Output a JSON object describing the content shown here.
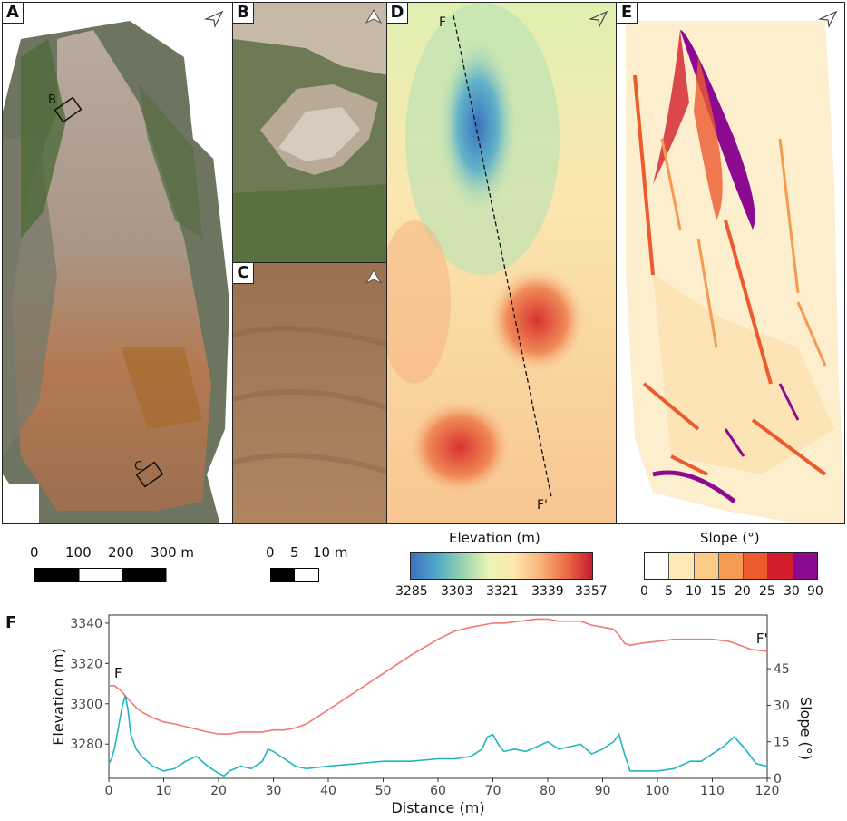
{
  "panels": {
    "A": {
      "label": "A",
      "box_b": "B",
      "box_c": "C"
    },
    "B": {
      "label": "B"
    },
    "C": {
      "label": "C"
    },
    "D": {
      "label": "D",
      "profile_start": "F",
      "profile_end": "F'"
    },
    "E": {
      "label": "E"
    },
    "F": {
      "label": "F"
    }
  },
  "scalebars": {
    "large": {
      "ticks": [
        "0",
        "100",
        "200",
        "300 m"
      ]
    },
    "small": {
      "ticks": [
        "0",
        "5",
        "10 m"
      ]
    }
  },
  "colorbars": {
    "elevation": {
      "title": "Elevation (m)",
      "ticks": [
        "3285",
        "3303",
        "3321",
        "3339",
        "3357"
      ],
      "colors": [
        "#3f6fc0",
        "#4fa8c8",
        "#98d3b0",
        "#e9f4b6",
        "#fde6ad",
        "#f9b47c",
        "#ec6b46",
        "#c81b2f"
      ]
    },
    "slope": {
      "title": "Slope (°)",
      "ticks": [
        "0",
        "5",
        "10",
        "15",
        "20",
        "25",
        "30",
        "90"
      ],
      "colors": [
        "#ffffff",
        "#fde9b8",
        "#fbcb86",
        "#f59a52",
        "#ec5a2e",
        "#d21e2c",
        "#8b0a8f"
      ]
    }
  },
  "chart_data": {
    "type": "line",
    "xlabel": "Distance (m)",
    "ylabel": "Elevation (m)",
    "y2label": "Slope (°)",
    "xlim": [
      0,
      120
    ],
    "ylim": [
      3263,
      3344
    ],
    "y2lim": [
      0,
      67
    ],
    "x_ticks": [
      0,
      10,
      20,
      30,
      40,
      50,
      60,
      70,
      80,
      90,
      100,
      110,
      120
    ],
    "y_ticks": [
      3280,
      3300,
      3320,
      3340
    ],
    "y2_ticks": [
      0,
      15,
      30,
      45
    ],
    "annotations": [
      {
        "text": "F",
        "x": 1,
        "y": 3313
      },
      {
        "text": "F'",
        "x": 118,
        "y": 3330
      }
    ],
    "series": [
      {
        "color": "#f07a72",
        "axis": "left",
        "x": [
          0,
          1,
          2,
          3,
          4,
          5,
          6,
          8,
          10,
          12,
          15,
          18,
          20,
          22,
          24,
          26,
          28,
          30,
          32,
          34,
          36,
          40,
          45,
          50,
          55,
          60,
          63,
          66,
          68,
          70,
          72,
          75,
          78,
          80,
          82,
          84,
          86,
          88,
          90,
          92,
          93,
          94,
          95,
          97,
          100,
          103,
          106,
          110,
          113,
          115,
          117,
          120
        ],
        "y": [
          3309,
          3309,
          3307,
          3304,
          3301,
          3298,
          3296,
          3293,
          3291,
          3290,
          3288,
          3286,
          3285,
          3285,
          3286,
          3286,
          3286,
          3287,
          3287,
          3288,
          3290,
          3297,
          3306,
          3315,
          3324,
          3332,
          3336,
          3338,
          3339,
          3340,
          3340,
          3341,
          3342,
          3342,
          3341,
          3341,
          3341,
          3339,
          3338,
          3337,
          3334,
          3330,
          3329,
          3330,
          3331,
          3332,
          3332,
          3332,
          3331,
          3329,
          3327,
          3326
        ]
      },
      {
        "color": "#22b5bf",
        "axis": "right",
        "x": [
          0,
          0.5,
          1,
          1.5,
          2,
          2.5,
          3,
          3.5,
          4,
          5,
          6,
          7,
          8,
          9,
          10,
          12,
          14,
          16,
          18,
          20,
          21,
          22,
          24,
          26,
          28,
          29,
          30,
          32,
          34,
          36,
          40,
          45,
          50,
          55,
          60,
          63,
          66,
          68,
          69,
          70,
          71,
          72,
          74,
          76,
          78,
          80,
          82,
          84,
          86,
          88,
          90,
          92,
          93,
          94,
          95,
          97,
          100,
          103,
          106,
          108,
          110,
          112,
          114,
          116,
          118,
          120
        ],
        "y": [
          6,
          8,
          12,
          18,
          24,
          30,
          34,
          28,
          18,
          12,
          9,
          7,
          5,
          4,
          3,
          4,
          7,
          9,
          5,
          2,
          1,
          3,
          5,
          4,
          7,
          12,
          11,
          8,
          5,
          4,
          5,
          6,
          7,
          7,
          8,
          8,
          9,
          12,
          17,
          18,
          14,
          11,
          12,
          11,
          13,
          15,
          12,
          13,
          14,
          10,
          12,
          15,
          18,
          10,
          3,
          3,
          3,
          4,
          7,
          7,
          10,
          13,
          17,
          12,
          6,
          5
        ]
      }
    ]
  }
}
